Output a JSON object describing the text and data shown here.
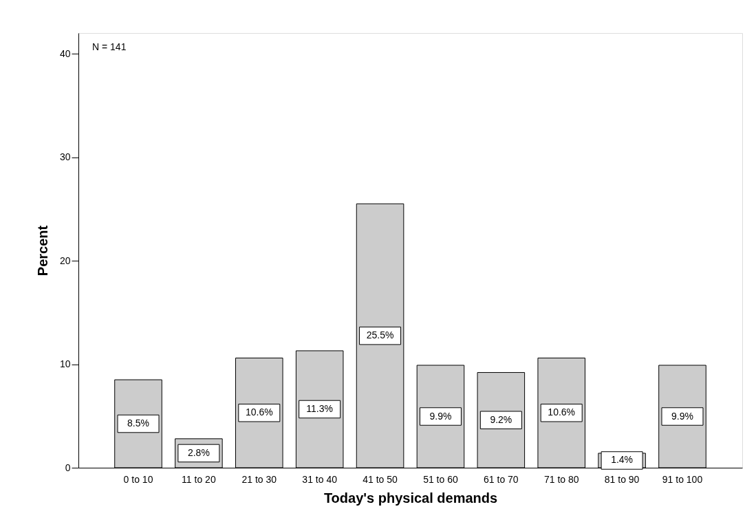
{
  "chart_data": {
    "type": "bar",
    "xlabel": "Today's physical demands",
    "ylabel": "Percent",
    "categories": [
      "0 to 10",
      "11 to 20",
      "21 to 30",
      "31 to 40",
      "41 to 50",
      "51 to 60",
      "61 to 70",
      "71 to 80",
      "81 to 90",
      "91 to 100"
    ],
    "values": [
      8.5,
      2.8,
      10.6,
      11.3,
      25.5,
      9.9,
      9.2,
      10.6,
      1.4,
      9.9
    ],
    "value_labels": [
      "8.5%",
      "2.8%",
      "10.6%",
      "11.3%",
      "25.5%",
      "9.9%",
      "9.2%",
      "10.6%",
      "1.4%",
      "9.9%"
    ],
    "color": "#cccccc",
    "ylim": [
      0,
      42
    ],
    "yticks": [
      0,
      10,
      20,
      30,
      40
    ],
    "grid": false,
    "annotations": [
      "N = 141"
    ]
  }
}
